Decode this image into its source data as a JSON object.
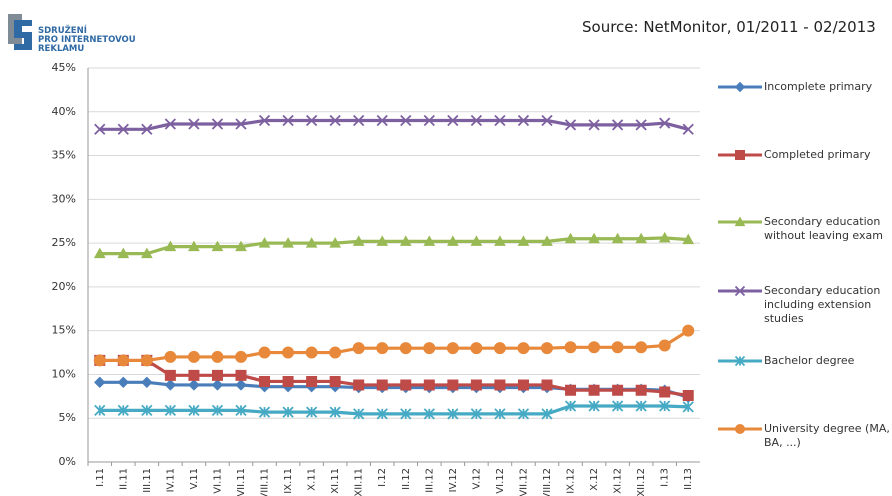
{
  "header": {
    "logo": [
      "SDRUŽENÍ",
      "PRO INTERNETOVOU",
      "REKLAMU"
    ],
    "source": "Source:  NetMonitor, 01/2011 - 02/2013"
  },
  "chart_data": {
    "type": "line",
    "categories": [
      "I.11",
      "II.11",
      "III.11",
      "IV.11",
      "V.11",
      "VI.11",
      "VII.11",
      "VIII.11",
      "IX.11",
      "X.11",
      "XI.11",
      "XII.11",
      "I.12",
      "II.12",
      "III.12",
      "IV.12",
      "V.12",
      "VI.12",
      "VII.12",
      "VIII.12",
      "IX.12",
      "X.12",
      "XI.12",
      "XII.12",
      "I.13",
      "II.13"
    ],
    "ylim": [
      0,
      45
    ],
    "yticks": [
      {
        "value": 0,
        "label": "0%"
      },
      {
        "value": 5,
        "label": "5%"
      },
      {
        "value": 10,
        "label": "10%"
      },
      {
        "value": 15,
        "label": "15%"
      },
      {
        "value": 20,
        "label": "20%"
      },
      {
        "value": 25,
        "label": "25%"
      },
      {
        "value": 30,
        "label": "30%"
      },
      {
        "value": 35,
        "label": "35%"
      },
      {
        "value": 40,
        "label": "40%"
      },
      {
        "value": 45,
        "label": "45%"
      }
    ],
    "grid": true,
    "series": [
      {
        "name": "Incomplete primary",
        "color": "#4a7ebb",
        "marker": "diamond",
        "values": [
          9.1,
          9.1,
          9.1,
          8.8,
          8.8,
          8.8,
          8.8,
          8.6,
          8.6,
          8.6,
          8.6,
          8.5,
          8.5,
          8.5,
          8.5,
          8.5,
          8.5,
          8.5,
          8.5,
          8.5,
          8.3,
          8.3,
          8.3,
          8.3,
          8.2,
          7.4
        ]
      },
      {
        "name": "Completed primary",
        "color": "#be4b48",
        "marker": "square",
        "values": [
          11.6,
          11.6,
          11.6,
          9.9,
          9.9,
          9.9,
          9.9,
          9.2,
          9.2,
          9.2,
          9.2,
          8.8,
          8.8,
          8.8,
          8.8,
          8.8,
          8.8,
          8.8,
          8.8,
          8.8,
          8.2,
          8.2,
          8.2,
          8.2,
          8.0,
          7.6
        ]
      },
      {
        "name": "Secondary education without leaving exam",
        "color": "#98b954",
        "marker": "triangle",
        "values": [
          23.8,
          23.8,
          23.8,
          24.6,
          24.6,
          24.6,
          24.6,
          25.0,
          25.0,
          25.0,
          25.0,
          25.2,
          25.2,
          25.2,
          25.2,
          25.2,
          25.2,
          25.2,
          25.2,
          25.2,
          25.5,
          25.5,
          25.5,
          25.5,
          25.6,
          25.4
        ]
      },
      {
        "name": "Secondary education including extension studies",
        "color": "#7d60a0",
        "marker": "x",
        "values": [
          38.0,
          38.0,
          38.0,
          38.6,
          38.6,
          38.6,
          38.6,
          39.0,
          39.0,
          39.0,
          39.0,
          39.0,
          39.0,
          39.0,
          39.0,
          39.0,
          39.0,
          39.0,
          39.0,
          39.0,
          38.5,
          38.5,
          38.5,
          38.5,
          38.7,
          38.0
        ]
      },
      {
        "name": "Bachelor degree",
        "color": "#46aac4",
        "marker": "star",
        "values": [
          5.9,
          5.9,
          5.9,
          5.9,
          5.9,
          5.9,
          5.9,
          5.7,
          5.7,
          5.7,
          5.7,
          5.5,
          5.5,
          5.5,
          5.5,
          5.5,
          5.5,
          5.5,
          5.5,
          5.5,
          6.4,
          6.4,
          6.4,
          6.4,
          6.4,
          6.3
        ]
      },
      {
        "name": "University degree (MA, BA, ...)",
        "color": "#e8883a",
        "marker": "circle",
        "values": [
          11.6,
          11.6,
          11.6,
          12.0,
          12.0,
          12.0,
          12.0,
          12.5,
          12.5,
          12.5,
          12.5,
          13.0,
          13.0,
          13.0,
          13.0,
          13.0,
          13.0,
          13.0,
          13.0,
          13.0,
          13.1,
          13.1,
          13.1,
          13.1,
          13.3,
          15.0
        ]
      }
    ]
  }
}
